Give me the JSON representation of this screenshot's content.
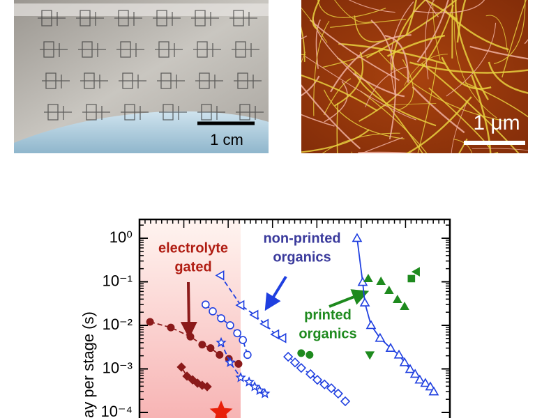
{
  "images": [
    {
      "scale_label": "1 cm"
    },
    {
      "scale_label": "1 μm"
    }
  ],
  "chart_data": {
    "type": "scatter",
    "y_label": "ay per stage (s)",
    "yscale": "log",
    "xlim": [
      0,
      100
    ],
    "ylim": [
      7.45e-05,
      2.7
    ],
    "yticks": [
      {
        "value": 1,
        "label": "10⁰"
      },
      {
        "value": 0.1,
        "label": "10⁻¹"
      },
      {
        "value": 0.01,
        "label": "10⁻²"
      },
      {
        "value": 0.001,
        "label": "10⁻³"
      },
      {
        "value": 0.0001,
        "label": "10⁻⁴"
      }
    ],
    "annotations": [
      {
        "lines": [
          "electrolyte",
          "gated"
        ],
        "color": "#b01c12"
      },
      {
        "lines": [
          "non-printed",
          "organics"
        ],
        "color": "#3a3a9c"
      },
      {
        "lines": [
          "printed",
          "organics"
        ],
        "color": "#1e8a1e"
      }
    ],
    "series": [
      {
        "color": "#8b1a1a",
        "marker": "circle",
        "filled": true,
        "line": "dash",
        "x": [
          3.4,
          10.1,
          16.4,
          20.2,
          22.9,
          25.8,
          28.8,
          31.9
        ],
        "values": [
          0.012,
          0.0089,
          0.0055,
          0.0036,
          0.003,
          0.0021,
          0.0017,
          0.0013
        ]
      },
      {
        "color": "#8b1a1a",
        "marker": "diamond",
        "filled": true,
        "line": "solid",
        "x": [
          13.5,
          15.3,
          17.1,
          18.7,
          20.2,
          21.8
        ],
        "values": [
          0.0011,
          0.00068,
          0.00056,
          0.00047,
          0.00042,
          0.00039
        ]
      },
      {
        "color": "#e8200a",
        "marker": "star",
        "filled": true,
        "line": "none",
        "x": [
          26.3
        ],
        "values": [
          0.0001
        ]
      },
      {
        "color": "#1f3fe0",
        "marker": "circle",
        "filled": false,
        "line": "dash",
        "x": [
          21.3,
          23.6,
          26.3,
          29.2,
          31.5,
          33.3,
          34.8
        ],
        "values": [
          0.03,
          0.021,
          0.0145,
          0.01,
          0.0066,
          0.0046,
          0.0021
        ]
      },
      {
        "color": "#1f3fe0",
        "marker": "star",
        "filled": false,
        "line": "dash",
        "x": [
          26.3,
          29.2,
          32.6,
          35.3,
          37.1,
          38.7,
          40.4
        ],
        "values": [
          0.004,
          0.0014,
          0.00063,
          0.0005,
          0.00039,
          0.00032,
          0.00027
        ]
      },
      {
        "color": "#1f3fe0",
        "marker": "triangle-left",
        "filled": false,
        "line": "dash",
        "x": [
          26.1,
          32.6,
          37.1,
          40.4,
          43.8,
          46.1
        ],
        "values": [
          0.14,
          0.029,
          0.0174,
          0.0108,
          0.0062,
          0.0051
        ]
      },
      {
        "color": "#1f3fe0",
        "marker": "diamond",
        "filled": false,
        "line": "dash",
        "x": [
          47.9,
          50.1,
          52.1,
          55.1,
          57.3,
          59.6,
          61.8,
          64.0,
          66.3
        ],
        "values": [
          0.0019,
          0.0014,
          0.00105,
          0.00076,
          0.00056,
          0.00044,
          0.00036,
          0.00027,
          0.00018
        ]
      },
      {
        "color": "#1f3fe0",
        "marker": "triangle-up",
        "filled": false,
        "line": "solid",
        "x": [
          70.1,
          71.9,
          72.6,
          74.6,
          77.5,
          80.9,
          83.6,
          85.4,
          87.2,
          88.8,
          90.3,
          92.1,
          93.7,
          94.8
        ],
        "values": [
          1.0,
          0.098,
          0.033,
          0.01,
          0.0051,
          0.003,
          0.0021,
          0.0014,
          0.00098,
          0.00076,
          0.00056,
          0.00047,
          0.00039,
          0.0003
        ]
      },
      {
        "color": "#1e8a1e",
        "marker": "circle",
        "filled": true,
        "line": "none",
        "x": [
          52.1,
          54.8
        ],
        "values": [
          0.0023,
          0.0021
        ]
      },
      {
        "color": "#1e8a1e",
        "marker": "triangle-up",
        "filled": true,
        "line": "none",
        "x": [
          73.7,
          77.8,
          80.4,
          83.1,
          85.4
        ],
        "values": [
          0.118,
          0.102,
          0.063,
          0.039,
          0.027
        ]
      },
      {
        "color": "#1e8a1e",
        "marker": "triangle-down",
        "filled": true,
        "line": "none",
        "x": [
          74.2
        ],
        "values": [
          0.0021
        ]
      },
      {
        "color": "#1e8a1e",
        "marker": "square",
        "filled": true,
        "line": "none",
        "x": [
          87.6
        ],
        "values": [
          0.118
        ]
      },
      {
        "color": "#1e8a1e",
        "marker": "triangle-left",
        "filled": true,
        "line": "none",
        "x": [
          89.2
        ],
        "values": [
          0.17
        ]
      }
    ]
  }
}
